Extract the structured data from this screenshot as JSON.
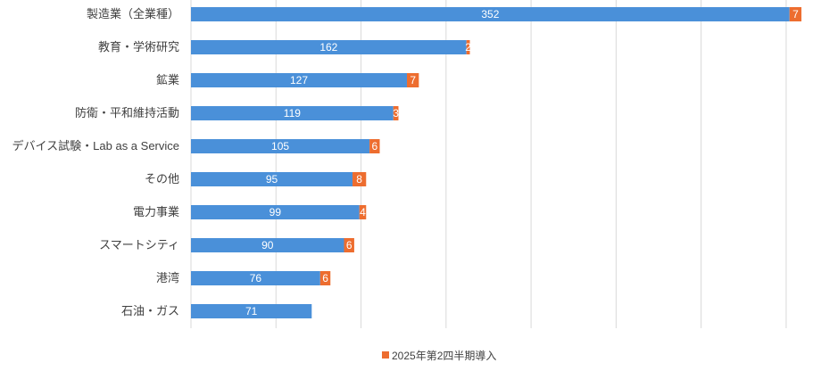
{
  "chart_data": {
    "type": "bar",
    "orientation": "horizontal",
    "stacked": true,
    "title": "",
    "xlabel": "",
    "ylabel": "",
    "xlim": [
      0,
      360
    ],
    "grid": true,
    "grid_step": 50,
    "categories": [
      "製造業（全業種）",
      "教育・学術研究",
      "鉱業",
      "防衛・平和維持活動",
      "デバイス試験・Lab as a Service",
      "その他",
      "電力事業",
      "スマートシティ",
      "港湾",
      "石油・ガス"
    ],
    "series": [
      {
        "name": "",
        "color": "#4a90d9",
        "values": [
          352,
          162,
          127,
          119,
          105,
          95,
          99,
          90,
          76,
          71
        ]
      },
      {
        "name": "2025年第2四半期導入",
        "color": "#ed6d2f",
        "values": [
          7,
          2,
          7,
          3,
          6,
          8,
          4,
          6,
          6,
          null
        ]
      }
    ],
    "legend": {
      "position": "bottom",
      "entries": [
        "2025年第2四半期導入"
      ]
    }
  }
}
